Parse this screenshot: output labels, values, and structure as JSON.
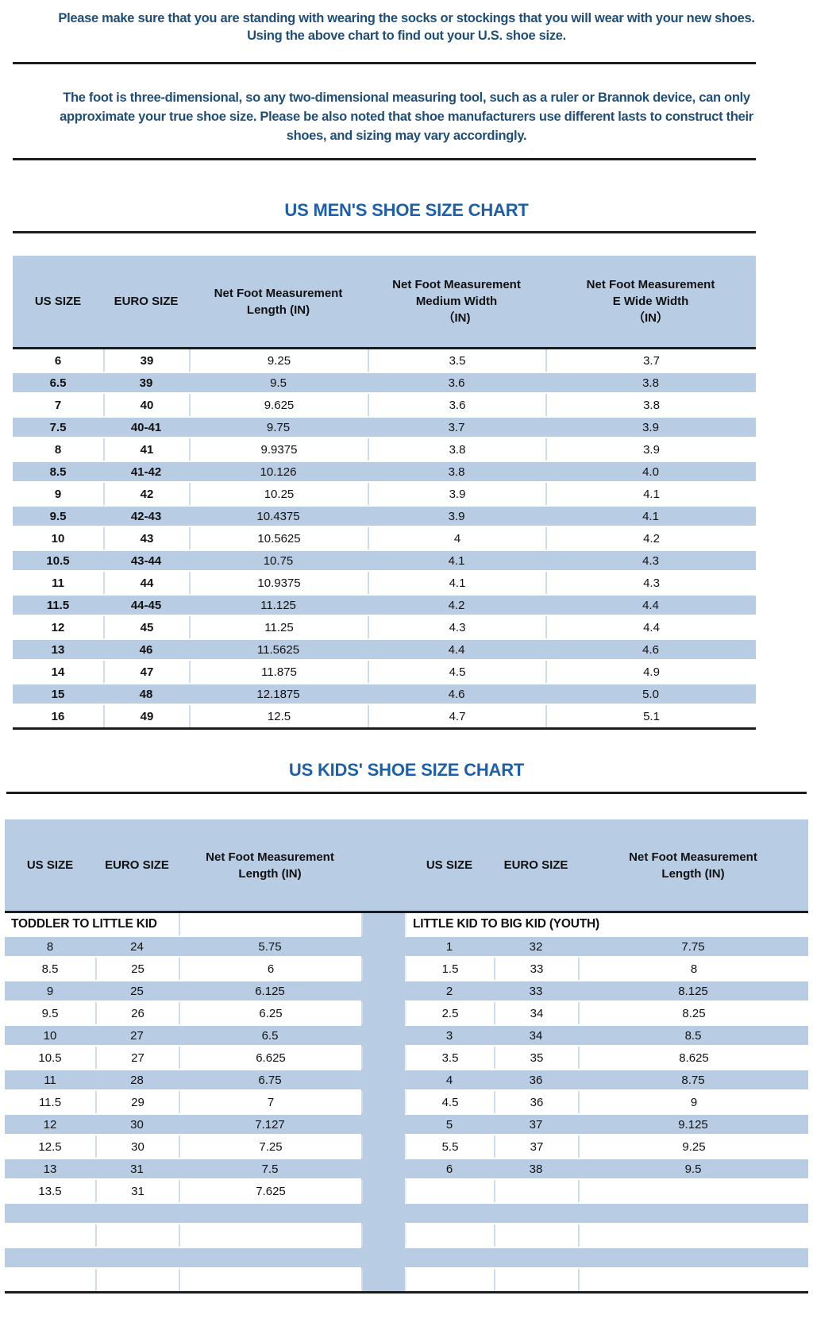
{
  "colors": {
    "stripe_blue": "#b8cce4",
    "title_blue": "#1e5fa9",
    "body_text_blue": "#1f4e79",
    "divider_black": "#1c1c1c",
    "table_text": "#111111"
  },
  "intro": {
    "lines": [
      "Please make sure that you are standing with wearing the socks or stockings that you will wear with your new shoes.",
      "Using the above chart to find out your U.S. shoe size."
    ]
  },
  "note": {
    "lines": [
      "The foot is three-dimensional, so any two-dimensional measuring tool, such as a ruler or Brannok device, can only",
      "approximate your true shoe size. Please be also noted that shoe manufacturers use different lasts to construct their",
      "shoes, and sizing may vary accordingly."
    ]
  },
  "mens_chart": {
    "title": "US MEN'S SHOE SIZE CHART",
    "columns": [
      [
        "US SIZE"
      ],
      [
        "EURO SIZE"
      ],
      [
        "Net Foot Measurement",
        "Length (IN)"
      ],
      [
        "Net Foot Measurement",
        "Medium Width",
        "（IN)"
      ],
      [
        "Net Foot Measurement",
        "E Wide Width",
        "（IN）"
      ]
    ],
    "rows": [
      [
        "6",
        "39",
        "9.25",
        "3.5",
        "3.7"
      ],
      [
        "6.5",
        "39",
        "9.5",
        "3.6",
        "3.8"
      ],
      [
        "7",
        "40",
        "9.625",
        "3.6",
        "3.8"
      ],
      [
        "7.5",
        "40-41",
        "9.75",
        "3.7",
        "3.9"
      ],
      [
        "8",
        "41",
        "9.9375",
        "3.8",
        "3.9"
      ],
      [
        "8.5",
        "41-42",
        "10.126",
        "3.8",
        "4.0"
      ],
      [
        "9",
        "42",
        "10.25",
        "3.9",
        "4.1"
      ],
      [
        "9.5",
        "42-43",
        "10.4375",
        "3.9",
        "4.1"
      ],
      [
        "10",
        "43",
        "10.5625",
        "4",
        "4.2"
      ],
      [
        "10.5",
        "43-44",
        "10.75",
        "4.1",
        "4.3"
      ],
      [
        "11",
        "44",
        "10.9375",
        "4.1",
        "4.3"
      ],
      [
        "11.5",
        "44-45",
        "11.125",
        "4.2",
        "4.4"
      ],
      [
        "12",
        "45",
        "11.25",
        "4.3",
        "4.4"
      ],
      [
        "13",
        "46",
        "11.5625",
        "4.4",
        "4.6"
      ],
      [
        "14",
        "47",
        "11.875",
        "4.5",
        "4.9"
      ],
      [
        "15",
        "48",
        "12.1875",
        "4.6",
        "5.0"
      ],
      [
        "16",
        "49",
        "12.5",
        "4.7",
        "5.1"
      ]
    ]
  },
  "kids_chart": {
    "title": "US KIDS' SHOE SIZE CHART",
    "columns": [
      [
        "US SIZE"
      ],
      [
        "EURO SIZE"
      ],
      [
        "Net Foot Measurement",
        "Length (IN)"
      ],
      [
        ""
      ],
      [
        "US SIZE"
      ],
      [
        "EURO SIZE"
      ],
      [
        "Net Foot Measurement",
        "Length (IN)"
      ]
    ],
    "left_section_label": "TODDLER TO LITTLE KID",
    "right_section_label": "LITTLE KID TO BIG KID (YOUTH)",
    "left_rows": [
      [
        "8",
        "24",
        "5.75"
      ],
      [
        "8.5",
        "25",
        "6"
      ],
      [
        "9",
        "25",
        "6.125"
      ],
      [
        "9.5",
        "26",
        "6.25"
      ],
      [
        "10",
        "27",
        "6.5"
      ],
      [
        "10.5",
        "27",
        "6.625"
      ],
      [
        "11",
        "28",
        "6.75"
      ],
      [
        "11.5",
        "29",
        "7"
      ],
      [
        "12",
        "30",
        "7.127"
      ],
      [
        "12.5",
        "30",
        "7.25"
      ],
      [
        "13",
        "31",
        "7.5"
      ],
      [
        "13.5",
        "31",
        "7.625"
      ]
    ],
    "right_rows": [
      [
        "1",
        "32",
        "7.75"
      ],
      [
        "1.5",
        "33",
        "8"
      ],
      [
        "2",
        "33",
        "8.125"
      ],
      [
        "2.5",
        "34",
        "8.25"
      ],
      [
        "3",
        "34",
        "8.5"
      ],
      [
        "3.5",
        "35",
        "8.625"
      ],
      [
        "4",
        "36",
        "8.75"
      ],
      [
        "4.5",
        "36",
        "9"
      ],
      [
        "5",
        "37",
        "9.125"
      ],
      [
        "5.5",
        "37",
        "9.25"
      ],
      [
        "6",
        "38",
        "9.5"
      ]
    ],
    "total_body_rows": 16
  }
}
